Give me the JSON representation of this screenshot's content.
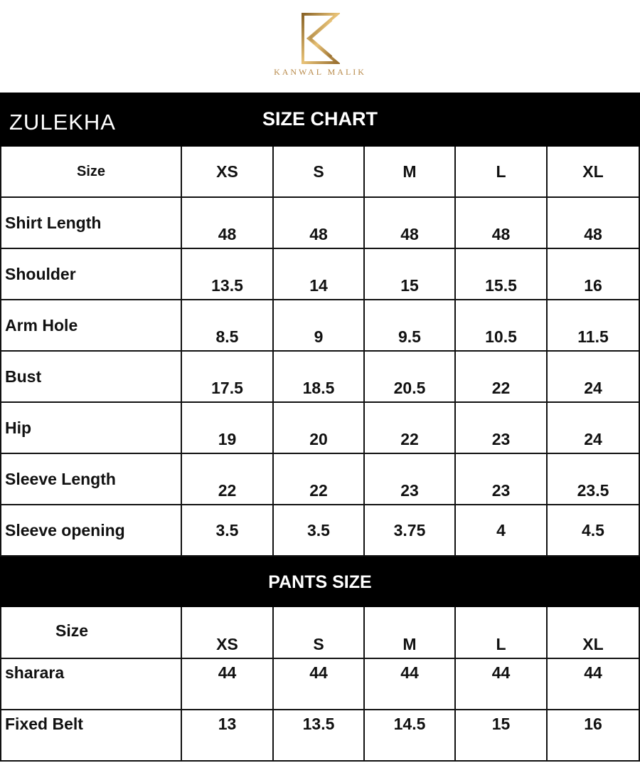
{
  "brand": {
    "name": "KANWAL MALIK",
    "logo_color": "#c49a52"
  },
  "title": {
    "product": "ZULEKHA",
    "chart": "SIZE CHART"
  },
  "shirt": {
    "header": [
      "Size",
      "XS",
      "S",
      "M",
      "L",
      "XL"
    ],
    "rows": [
      {
        "label": "Shirt Length",
        "values": [
          "48",
          "48",
          "48",
          "48",
          "48"
        ]
      },
      {
        "label": "Shoulder",
        "values": [
          "13.5",
          "14",
          "15",
          "15.5",
          "16"
        ]
      },
      {
        "label": "Arm Hole",
        "values": [
          "8.5",
          "9",
          "9.5",
          "10.5",
          "11.5"
        ]
      },
      {
        "label": "Bust",
        "values": [
          "17.5",
          "18.5",
          "20.5",
          "22",
          "24"
        ]
      },
      {
        "label": "Hip",
        "values": [
          "19",
          "20",
          "22",
          "23",
          "24"
        ]
      },
      {
        "label": "Sleeve Length",
        "values": [
          "22",
          "22",
          "23",
          "23",
          "23.5"
        ]
      },
      {
        "label": "Sleeve opening",
        "values": [
          "3.5",
          "3.5",
          "3.75",
          "4",
          "4.5"
        ]
      }
    ]
  },
  "pants": {
    "title": "PANTS SIZE",
    "header": [
      "Size",
      "XS",
      "S",
      "M",
      "L",
      "XL"
    ],
    "rows": [
      {
        "label": "sharara",
        "values": [
          "44",
          "44",
          "44",
          "44",
          "44"
        ]
      },
      {
        "label": "Fixed Belt",
        "values": [
          "13",
          "13.5",
          "14.5",
          "15",
          "16"
        ]
      }
    ]
  }
}
